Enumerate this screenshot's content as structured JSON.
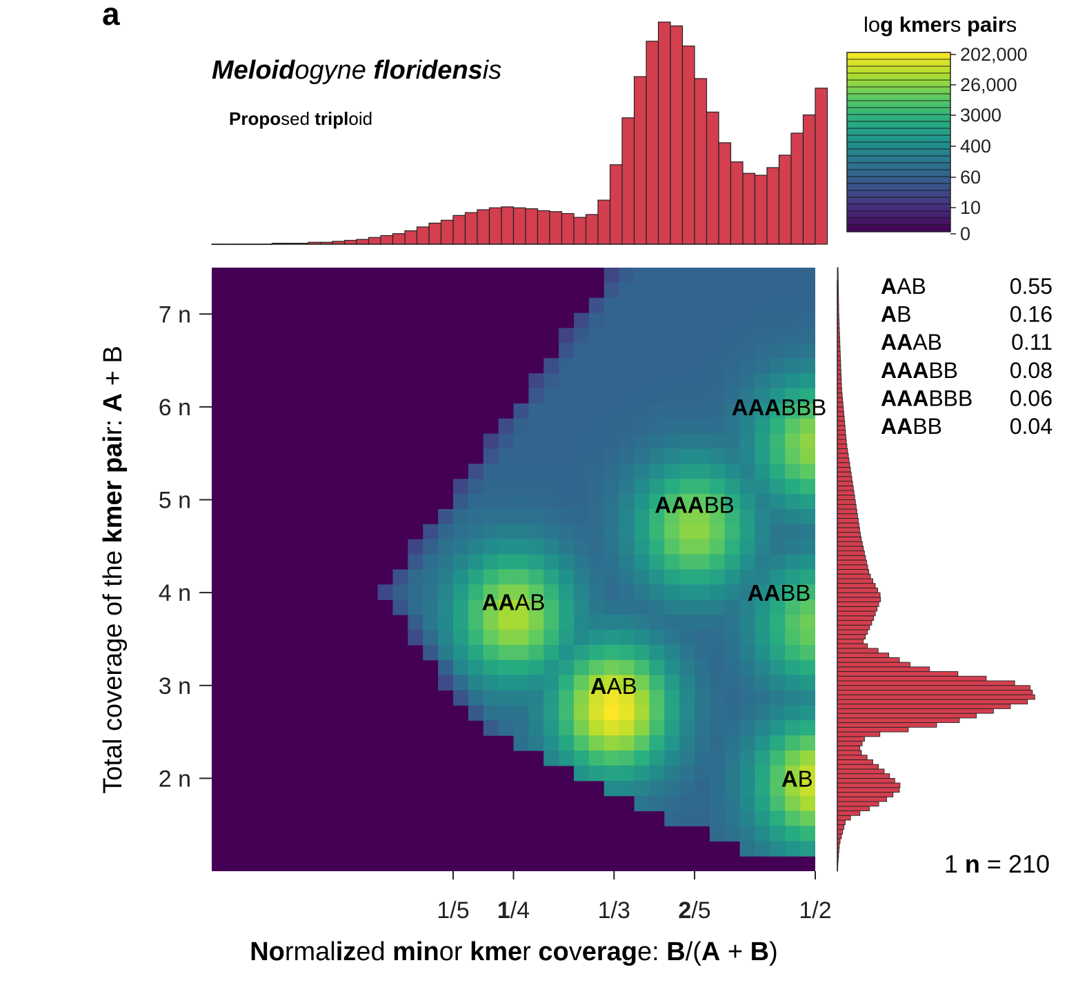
{
  "panel_letter": "a",
  "species": {
    "bold_a": "Meloid",
    "plain_a": "ogyne ",
    "bold_b": "flor",
    "plain_b": "i",
    "bold_c": "dens",
    "plain_c": "is"
  },
  "subtitle": {
    "bold_a": "Propo",
    "plain_a": "sed ",
    "bold_b": "tripl",
    "plain_b": "oid"
  },
  "legend": {
    "title_parts": {
      "plain_a": "lo",
      "bold_a": "g",
      "plain_b": " ",
      "bold_b": "kmer",
      "plain_c": "s ",
      "bold_c": "pair",
      "plain_d": "s"
    },
    "labels": [
      "202,000",
      "26,000",
      "3000",
      "400",
      "60",
      "10",
      "0"
    ],
    "gradient": [
      "#440154",
      "#472d7b",
      "#3b528b",
      "#2c728e",
      "#21918c",
      "#28ae80",
      "#5ec962",
      "#addc30",
      "#fde725"
    ]
  },
  "axes": {
    "x_label": {
      "bold_a": "No",
      "plain_a": "rmal",
      "bold_b": "iz",
      "plain_b": "ed ",
      "bold_c": "min",
      "plain_c": "or ",
      "bold_d": "kme",
      "plain_d": "r ",
      "bold_e": "co",
      "plain_e": "v",
      "bold_f": "erag",
      "plain_f": "e: ",
      "bold_g": "B",
      "plain_g": "/(",
      "bold_h": "A",
      "plain_h": " + ",
      "bold_i": "B",
      "plain_i": ")"
    },
    "y_label": {
      "plain_a": "Total coverage of the ",
      "bold_a": "kmer",
      "plain_b": " ",
      "bold_b": "pai",
      "plain_c": "r: ",
      "bold_c": "A",
      "plain_d": " + B"
    },
    "x_ticks": [
      {
        "value": 0.2,
        "bold": "",
        "plain": "1/5"
      },
      {
        "value": 0.25,
        "bold": "1",
        "plain": "/4"
      },
      {
        "value": 0.3333,
        "bold": "",
        "plain": "1/3"
      },
      {
        "value": 0.4,
        "bold": "2",
        "plain": "/5"
      },
      {
        "value": 0.5,
        "bold": "",
        "plain": "1/2"
      }
    ],
    "y_ticks": [
      {
        "value": 2,
        "label": "2 n"
      },
      {
        "value": 3,
        "label": "3 n"
      },
      {
        "value": 4,
        "label": "4 n"
      },
      {
        "value": 5,
        "label": "5 n"
      },
      {
        "value": 6,
        "label": "6 n"
      },
      {
        "value": 7,
        "label": "7 n"
      }
    ]
  },
  "genotypes": [
    {
      "bold": "A",
      "plain": "AB",
      "x": 0.333,
      "y": 3.0,
      "proportion": "0.55"
    },
    {
      "bold": "A",
      "plain": "B",
      "x": 0.485,
      "y": 2.0,
      "proportion": "0.16"
    },
    {
      "bold": "AA",
      "plain": "AB",
      "x": 0.25,
      "y": 3.9,
      "proportion": "0.11"
    },
    {
      "bold": "AAA",
      "plain": "BB",
      "x": 0.4,
      "y": 4.95,
      "proportion": "0.08"
    },
    {
      "bold": "AAA",
      "plain": "BBB",
      "x": 0.47,
      "y": 6.0,
      "proportion": "0.06"
    },
    {
      "bold": "AA",
      "plain": "BB",
      "x": 0.47,
      "y": 4.0,
      "proportion": "0.04"
    }
  ],
  "n_note": {
    "plain_a": "1 ",
    "bold_a": "n",
    "plain_b": " =  210"
  },
  "chart_data": [
    {
      "type": "bar",
      "title": "Meloidogyne floridensis",
      "subtitle": "Proposed triploid",
      "xlabel": "Normalized minor kmer coverage: B/(A + B)",
      "xlim": [
        0.0,
        0.5
      ],
      "x_bin_start": 0.0,
      "x_bin_width": 0.01,
      "values": [
        0,
        0,
        0,
        0,
        0,
        1,
        1,
        1,
        2,
        2,
        3,
        4,
        5,
        7,
        9,
        11,
        14,
        18,
        22,
        25,
        30,
        33,
        36,
        38,
        39,
        38,
        37,
        35,
        34,
        32,
        28,
        31,
        46,
        83,
        132,
        175,
        212,
        232,
        228,
        207,
        173,
        138,
        106,
        86,
        74,
        72,
        80,
        93,
        116,
        135,
        163
      ]
    },
    {
      "type": "heatmap",
      "xlabel": "Normalized minor kmer coverage: B/(A + B)",
      "ylabel": "Total coverage of the kmer pair: A + B",
      "xlim": [
        0.0,
        0.5
      ],
      "ylim": [
        1.0,
        7.5
      ],
      "y_unit": "n = 210",
      "color_scale": "log kmers pairs",
      "peaks": [
        {
          "genotype": "AAB",
          "x": 0.333,
          "y": 2.75,
          "level": 1.0
        },
        {
          "genotype": "AB",
          "x": 0.5,
          "y": 1.95,
          "level": 0.9
        },
        {
          "genotype": "AAAB",
          "x": 0.25,
          "y": 3.75,
          "level": 0.82
        },
        {
          "genotype": "AAABB",
          "x": 0.4,
          "y": 4.7,
          "level": 0.75
        },
        {
          "genotype": "AAABBB",
          "x": 0.5,
          "y": 5.6,
          "level": 0.76
        },
        {
          "genotype": "AABB",
          "x": 0.5,
          "y": 3.65,
          "level": 0.68
        }
      ]
    },
    {
      "type": "bar",
      "orientation": "horizontal",
      "ylabel": "Total coverage of the kmer pair: A + B",
      "ylim": [
        1.0,
        7.5
      ],
      "y_profile": [
        [
          1.0,
          0
        ],
        [
          1.3,
          3
        ],
        [
          1.55,
          12
        ],
        [
          1.75,
          65
        ],
        [
          1.9,
          92
        ],
        [
          2.05,
          70
        ],
        [
          2.3,
          30
        ],
        [
          2.45,
          40
        ],
        [
          2.6,
          160
        ],
        [
          2.85,
          280
        ],
        [
          3.0,
          270
        ],
        [
          3.2,
          110
        ],
        [
          3.45,
          35
        ],
        [
          3.7,
          50
        ],
        [
          3.95,
          62
        ],
        [
          4.2,
          45
        ],
        [
          4.6,
          33
        ],
        [
          5.0,
          25
        ],
        [
          5.6,
          13
        ],
        [
          6.2,
          6
        ],
        [
          7.0,
          2
        ],
        [
          7.5,
          1
        ]
      ]
    }
  ]
}
